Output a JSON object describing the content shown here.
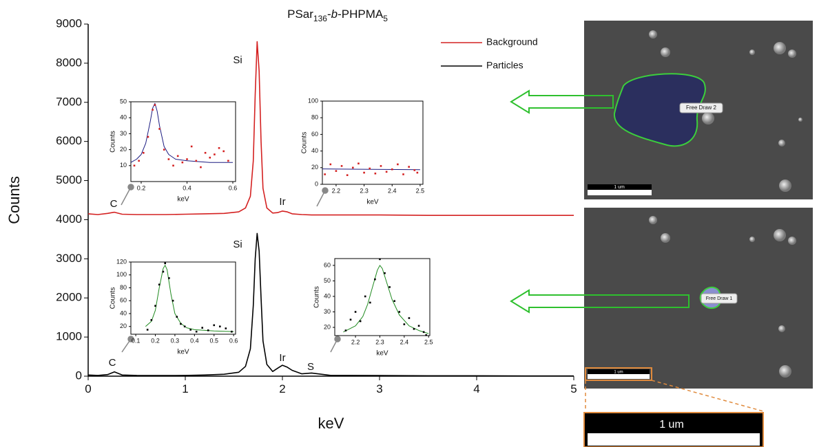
{
  "chart_data": [
    {
      "type": "line",
      "title": [
        "PSar",
        "136",
        "-",
        "b",
        "-PHPMA",
        "5"
      ],
      "x_label": "keV",
      "y_label": "Counts",
      "xlim": [
        0,
        5
      ],
      "ylim": [
        0,
        9000
      ],
      "xticks": [
        0,
        1,
        2,
        3,
        4,
        5
      ],
      "yticks": [
        0,
        1000,
        2000,
        3000,
        4000,
        5000,
        6000,
        7000,
        8000,
        9000
      ],
      "legend": "top-right",
      "annotations": [
        "C",
        "Si",
        "Ir",
        "C",
        "Si",
        "Ir",
        "S"
      ],
      "series": [
        {
          "name": "Background",
          "color": "#d42020",
          "x": [
            0,
            0.1,
            0.2,
            0.27,
            0.35,
            0.5,
            0.8,
            1.0,
            1.2,
            1.4,
            1.55,
            1.62,
            1.67,
            1.7,
            1.72,
            1.74,
            1.76,
            1.78,
            1.8,
            1.84,
            1.9,
            1.95,
            2.0,
            2.05,
            2.1,
            2.2,
            2.3,
            2.5,
            3,
            3.5,
            4,
            4.5,
            5
          ],
          "values": [
            4150,
            4130,
            4160,
            4190,
            4140,
            4130,
            4130,
            4140,
            4150,
            4160,
            4200,
            4300,
            4600,
            5500,
            7200,
            8550,
            7800,
            6000,
            4800,
            4300,
            4170,
            4180,
            4220,
            4200,
            4150,
            4130,
            4120,
            4120,
            4120,
            4110,
            4110,
            4110,
            4110
          ]
        },
        {
          "name": "Particles",
          "color": "#000000",
          "x": [
            0,
            0.1,
            0.2,
            0.27,
            0.35,
            0.5,
            0.8,
            1.0,
            1.2,
            1.4,
            1.55,
            1.62,
            1.67,
            1.7,
            1.72,
            1.74,
            1.76,
            1.78,
            1.8,
            1.84,
            1.9,
            1.95,
            2.0,
            2.05,
            2.1,
            2.2,
            2.3,
            2.5,
            3,
            3.5,
            4,
            4.5,
            5
          ],
          "values": [
            30,
            20,
            40,
            110,
            30,
            20,
            15,
            20,
            30,
            50,
            100,
            250,
            700,
            1800,
            3000,
            3650,
            3200,
            2000,
            900,
            300,
            120,
            200,
            280,
            230,
            150,
            60,
            80,
            20,
            15,
            10,
            10,
            5,
            5
          ]
        }
      ]
    },
    {
      "type": "line",
      "x_label": "keV",
      "y_label": "Counts",
      "xlim": [
        0.155,
        0.612
      ],
      "ylim": [
        0,
        50
      ],
      "xticks": [
        0.2,
        0.4,
        0.6
      ],
      "yticks": [
        10,
        20,
        30,
        40,
        50
      ],
      "series": [
        {
          "color": "#1a1a80",
          "mode": "line",
          "x": [
            0.155,
            0.18,
            0.2,
            0.22,
            0.24,
            0.25,
            0.26,
            0.27,
            0.28,
            0.3,
            0.32,
            0.35,
            0.4,
            0.5,
            0.6
          ],
          "values": [
            12,
            14,
            17,
            24,
            38,
            46,
            49,
            44,
            35,
            22,
            17,
            14,
            13,
            12,
            12
          ]
        },
        {
          "color": "#d42020",
          "mode": "markers",
          "x": [
            0.17,
            0.19,
            0.21,
            0.23,
            0.25,
            0.26,
            0.28,
            0.3,
            0.32,
            0.34,
            0.36,
            0.38,
            0.4,
            0.42,
            0.44,
            0.46,
            0.48,
            0.5,
            0.52,
            0.54,
            0.56,
            0.58
          ],
          "values": [
            10,
            13,
            18,
            28,
            45,
            48,
            33,
            20,
            14,
            10,
            16,
            12,
            14,
            22,
            13,
            9,
            18,
            15,
            17,
            21,
            19,
            13
          ]
        }
      ]
    },
    {
      "type": "line",
      "x_label": "keV",
      "y_label": "Counts",
      "xlim": [
        2.151,
        2.51
      ],
      "ylim": [
        0,
        100
      ],
      "xticks": [
        2.2,
        2.3,
        2.4,
        2.5
      ],
      "yticks": [
        0,
        20,
        40,
        60,
        80,
        100
      ],
      "series": [
        {
          "color": "#1a1a80",
          "mode": "line",
          "x": [
            2.151,
            2.5
          ],
          "values": [
            18.5,
            17.5
          ]
        },
        {
          "color": "#d42020",
          "mode": "markers",
          "x": [
            2.16,
            2.18,
            2.2,
            2.22,
            2.24,
            2.26,
            2.28,
            2.3,
            2.32,
            2.34,
            2.36,
            2.38,
            2.4,
            2.42,
            2.44,
            2.46,
            2.48,
            2.49
          ],
          "values": [
            12,
            24,
            16,
            22,
            11,
            20,
            25,
            14,
            19,
            13,
            22,
            15,
            18,
            24,
            12,
            21,
            17,
            14
          ]
        }
      ]
    },
    {
      "type": "line",
      "x_label": "keV",
      "y_label": "Counts",
      "xlim": [
        0.075,
        0.61
      ],
      "ylim": [
        8,
        120
      ],
      "xticks": [
        0.1,
        0.2,
        0.3,
        0.4,
        0.5,
        0.6
      ],
      "yticks": [
        20,
        40,
        60,
        80,
        100,
        120
      ],
      "series": [
        {
          "color": "#1f8a1f",
          "mode": "line",
          "x": [
            0.15,
            0.18,
            0.2,
            0.22,
            0.24,
            0.25,
            0.26,
            0.28,
            0.3,
            0.33,
            0.36,
            0.4,
            0.5,
            0.6
          ],
          "values": [
            20,
            28,
            45,
            80,
            110,
            115,
            108,
            70,
            40,
            25,
            18,
            15,
            13,
            12
          ]
        },
        {
          "color": "#000000",
          "mode": "markers",
          "x": [
            0.16,
            0.18,
            0.2,
            0.22,
            0.24,
            0.25,
            0.27,
            0.29,
            0.31,
            0.33,
            0.35,
            0.38,
            0.41,
            0.44,
            0.47,
            0.5,
            0.53,
            0.56,
            0.59
          ],
          "values": [
            15,
            30,
            52,
            85,
            105,
            118,
            95,
            60,
            35,
            24,
            20,
            15,
            12,
            18,
            14,
            22,
            20,
            17,
            12
          ]
        }
      ]
    },
    {
      "type": "line",
      "x_label": "keV",
      "y_label": "Counts",
      "xlim": [
        2.115,
        2.505
      ],
      "ylim": [
        14.7,
        64.4
      ],
      "xticks": [
        2.2,
        2.3,
        2.4,
        2.5
      ],
      "yticks": [
        20,
        30,
        40,
        50,
        60
      ],
      "series": [
        {
          "color": "#1f8a1f",
          "mode": "line",
          "x": [
            2.15,
            2.2,
            2.23,
            2.25,
            2.27,
            2.29,
            2.3,
            2.31,
            2.33,
            2.35,
            2.38,
            2.42,
            2.46,
            2.5
          ],
          "values": [
            17,
            21,
            27,
            35,
            46,
            57,
            60,
            58,
            48,
            38,
            28,
            21,
            18,
            16
          ]
        },
        {
          "color": "#000000",
          "mode": "markers",
          "x": [
            2.16,
            2.18,
            2.2,
            2.22,
            2.24,
            2.26,
            2.28,
            2.3,
            2.32,
            2.34,
            2.36,
            2.38,
            2.4,
            2.42,
            2.44,
            2.46,
            2.48,
            2.49
          ],
          "values": [
            18,
            25,
            30,
            24,
            40,
            36,
            51,
            64,
            55,
            46,
            37,
            30,
            22,
            26,
            19,
            21,
            17,
            15
          ]
        }
      ]
    }
  ],
  "images": [
    {
      "label": "Free Draw 2",
      "scale": "1 um"
    },
    {
      "label": "Free Draw 1",
      "scale": "1 um"
    }
  ],
  "zoom_scale": "1 um"
}
